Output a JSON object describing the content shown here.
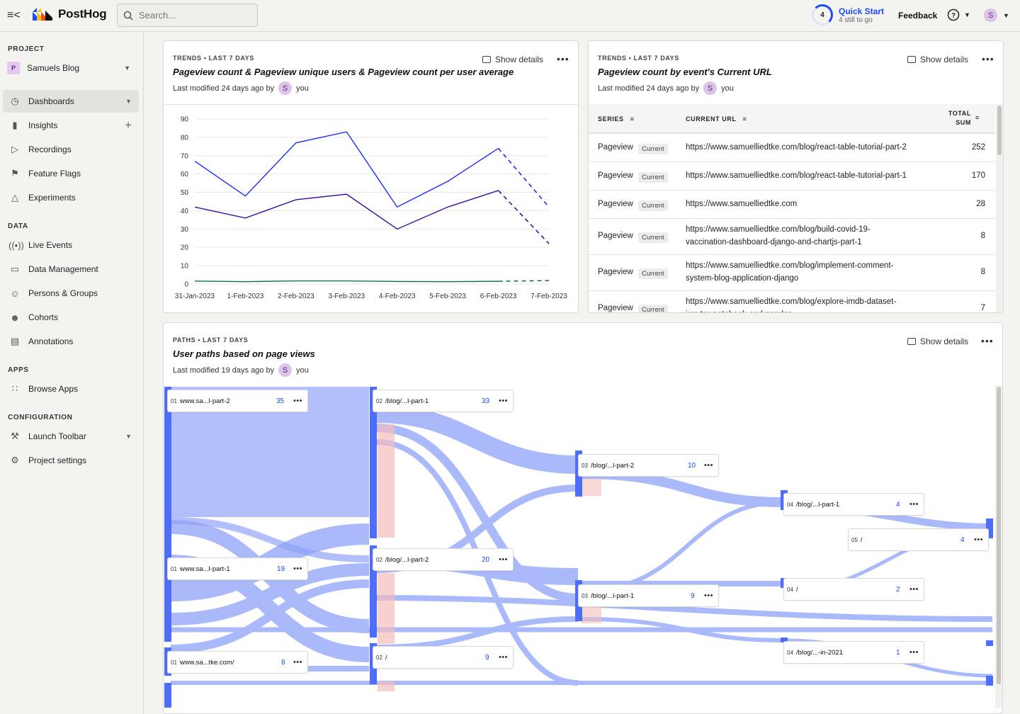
{
  "header": {
    "brand": "PostHog",
    "search_placeholder": "Search...",
    "quick_start": {
      "count": "4",
      "title": "Quick Start",
      "subtitle": "4 still to go"
    },
    "feedback": "Feedback",
    "help_icon": "help-circle-icon",
    "user_initial": "S"
  },
  "sidebar": {
    "project_heading": "PROJECT",
    "project": {
      "badge": "P",
      "name": "Samuels Blog"
    },
    "nav": [
      {
        "label": "Dashboards",
        "icon": "dashboard-icon"
      },
      {
        "label": "Insights",
        "icon": "insights-icon"
      },
      {
        "label": "Recordings",
        "icon": "recordings-icon"
      },
      {
        "label": "Feature Flags",
        "icon": "flag-icon"
      },
      {
        "label": "Experiments",
        "icon": "flask-icon"
      }
    ],
    "data_heading": "DATA",
    "data_nav": [
      {
        "label": "Live Events",
        "icon": "live-icon"
      },
      {
        "label": "Data Management",
        "icon": "database-icon"
      },
      {
        "label": "Persons & Groups",
        "icon": "person-icon"
      },
      {
        "label": "Cohorts",
        "icon": "cohorts-icon"
      },
      {
        "label": "Annotations",
        "icon": "annotation-icon"
      }
    ],
    "apps_heading": "APPS",
    "apps_nav": [
      {
        "label": "Browse Apps",
        "icon": "apps-grid-icon"
      }
    ],
    "config_heading": "CONFIGURATION",
    "config_nav": [
      {
        "label": "Launch Toolbar",
        "icon": "tools-icon"
      },
      {
        "label": "Project settings",
        "icon": "gear-icon"
      }
    ]
  },
  "insight1": {
    "kicker": "TRENDS • LAST 7 DAYS",
    "title": "Pageview count & Pageview unique users & Pageview count per user average",
    "modified": "Last modified 24 days ago by",
    "by": "you",
    "show_details": "Show details"
  },
  "insight2": {
    "kicker": "TRENDS • LAST 7 DAYS",
    "title": "Pageview count by event's Current URL",
    "modified": "Last modified 24 days ago by",
    "by": "you",
    "show_details": "Show details",
    "columns": {
      "series": "SERIES",
      "url": "CURRENT URL",
      "total_1": "TOTAL",
      "total_2": "SUM"
    },
    "rows": [
      {
        "series": "Pageview",
        "tag": "Current",
        "url1": "https://www.samuelliedtke.com/blog/react-table-tutorial-part-2",
        "url2": "",
        "total": "252"
      },
      {
        "series": "Pageview",
        "tag": "Current",
        "url1": "https://www.samuelliedtke.com/blog/react-table-tutorial-part-1",
        "url2": "",
        "total": "170"
      },
      {
        "series": "Pageview",
        "tag": "Current",
        "url1": "https://www.samuelliedtke.com",
        "url2": "",
        "total": "28"
      },
      {
        "series": "Pageview",
        "tag": "Current",
        "url1": "https://www.samuelliedtke.com/blog/build-covid-19-",
        "url2": "vaccination-dashboard-django-and-chartjs-part-1",
        "total": "8"
      },
      {
        "series": "Pageview",
        "tag": "Current",
        "url1": "https://www.samuelliedtke.com/blog/implement-comment-",
        "url2": "system-blog-application-django",
        "total": "8"
      },
      {
        "series": "Pageview",
        "tag": "Current",
        "url1": "https://www.samuelliedtke.com/blog/explore-imdb-dataset-",
        "url2": "jupyter-notebook-and-pandas",
        "total": "7"
      }
    ]
  },
  "insight3": {
    "kicker": "PATHS • LAST 7 DAYS",
    "title": "User paths based on page views",
    "modified": "Last modified 19 days ago by",
    "by": "you",
    "show_details": "Show details",
    "nodes": [
      {
        "step": "01",
        "label": "www.sa...l-part-2",
        "count": "35"
      },
      {
        "step": "01",
        "label": "www.sa...l-part-1",
        "count": "19"
      },
      {
        "step": "01",
        "label": "www.sa...tke.com/",
        "count": "8"
      },
      {
        "step": "02",
        "label": "/blog/...l-part-1",
        "count": "33"
      },
      {
        "step": "02",
        "label": "/blog/...l-part-2",
        "count": "20"
      },
      {
        "step": "02",
        "label": "/",
        "count": "9"
      },
      {
        "step": "03",
        "label": "/blog/...l-part-2",
        "count": "10"
      },
      {
        "step": "03",
        "label": "/blog/...l-part-1",
        "count": "9"
      },
      {
        "step": "04",
        "label": "/blog/...l-part-1",
        "count": "4"
      },
      {
        "step": "05",
        "label": "/",
        "count": "4"
      },
      {
        "step": "04",
        "label": "/",
        "count": "2"
      },
      {
        "step": "04",
        "label": "/blog/...-in-2021",
        "count": "1"
      }
    ]
  },
  "chart_data": {
    "type": "line",
    "title": "Pageview count & Pageview unique users & Pageview count per user average",
    "categories": [
      "31-Jan-2023",
      "1-Feb-2023",
      "2-Feb-2023",
      "3-Feb-2023",
      "4-Feb-2023",
      "5-Feb-2023",
      "6-Feb-2023",
      "7-Feb-2023"
    ],
    "ylim": [
      0,
      90
    ],
    "yticks": [
      "0",
      "10",
      "20",
      "30",
      "40",
      "50",
      "60",
      "70",
      "80",
      "90"
    ],
    "series": [
      {
        "name": "Pageview count",
        "color": "#1d2bff",
        "values": [
          67,
          48,
          77,
          83,
          42,
          56,
          74,
          42
        ]
      },
      {
        "name": "Pageview unique users",
        "color": "#3a0ca3",
        "values": [
          42,
          36,
          46,
          49,
          30,
          42,
          51,
          22
        ]
      },
      {
        "name": "Pageview count per user average",
        "color": "#1f6e5b",
        "values": [
          1.6,
          1.3,
          1.7,
          1.7,
          1.4,
          1.3,
          1.5,
          1.9
        ]
      }
    ],
    "dashed_from_index": 6
  }
}
